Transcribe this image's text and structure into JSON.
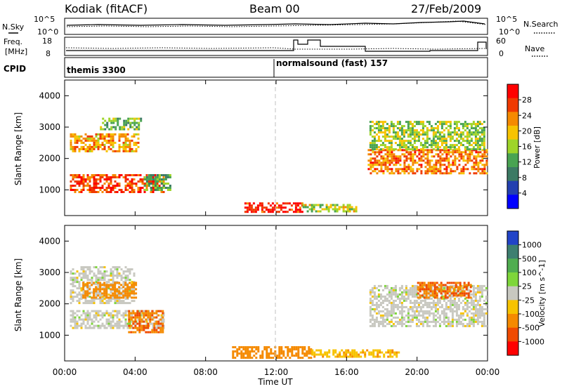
{
  "header": {
    "station": "Kodiak (fitACF)",
    "beam": "Beam 00",
    "date": "27/Feb/2009"
  },
  "top_panels": {
    "nsky_label": "N.Sky",
    "nsearch_label": "N.Search",
    "freq_label": "Freq.",
    "freq_unit": "[MHz]",
    "nave_label": "Nave",
    "cpid_label": "CPID",
    "noise_left_ticks": [
      "10^5",
      "10^0"
    ],
    "noise_right_ticks": [
      "10^5",
      "10^0"
    ],
    "freq_ticks": [
      "18",
      "8"
    ],
    "nave_ticks": [
      "60",
      "0"
    ]
  },
  "cpid_segments": [
    {
      "label": "themis 3300",
      "start_hour": 0
    },
    {
      "label": "normalsound (fast) 157",
      "start_hour": 12
    }
  ],
  "colors": {
    "power_scale": [
      "#0000ff",
      "#2340b0",
      "#3c7a64",
      "#49a352",
      "#9ed429",
      "#f7c300",
      "#f58a00",
      "#f03a00",
      "#ff0000"
    ],
    "velocity_scale": [
      "#2244c8",
      "#3d7f70",
      "#50ad50",
      "#7ed63a",
      "#c8c8c0",
      "#f7c300",
      "#f58a00",
      "#f04a00",
      "#ff0000"
    ],
    "ground_scatter": "#c0c0b8"
  },
  "chart_data": [
    {
      "type": "heatmap",
      "title": "Power",
      "ylabel": "Slant Range [km]",
      "xlabel": "Time UT",
      "x_ticks": [
        "00:00",
        "04:00",
        "08:00",
        "12:00",
        "16:00",
        "20:00",
        "00:00"
      ],
      "y_ticks": [
        "1000",
        "2000",
        "3000",
        "4000"
      ],
      "xlim_hours": [
        0,
        24
      ],
      "ylim_km": [
        180,
        4500
      ],
      "colorbar_label": "Power [dB]",
      "colorbar_ticks": [
        "28",
        "24",
        "20",
        "16",
        "12",
        "8",
        "4"
      ],
      "colorbar_range_db": [
        0,
        32
      ],
      "regions": [
        {
          "t0": 0.3,
          "t1": 5.6,
          "r0": 900,
          "r1": 1500,
          "value": 27
        },
        {
          "t0": 0.3,
          "t1": 4.2,
          "r0": 2200,
          "r1": 2800,
          "value": 22
        },
        {
          "t0": 2.0,
          "t1": 4.3,
          "r0": 2900,
          "r1": 3300,
          "value": 14
        },
        {
          "t0": 4.5,
          "t1": 6.0,
          "r0": 1000,
          "r1": 1500,
          "value": 13
        },
        {
          "t0": 10.2,
          "t1": 13.5,
          "r0": 300,
          "r1": 600,
          "value": 29
        },
        {
          "t0": 13.5,
          "t1": 16.5,
          "r0": 300,
          "r1": 550,
          "value": 17
        },
        {
          "t0": 17.2,
          "t1": 23.9,
          "r0": 1500,
          "r1": 2300,
          "value": 24
        },
        {
          "t0": 17.3,
          "t1": 23.8,
          "r0": 2300,
          "r1": 3200,
          "value": 16
        }
      ]
    },
    {
      "type": "heatmap",
      "title": "Velocity",
      "ylabel": "Slant Range [km]",
      "xlabel": "Time UT",
      "x_ticks": [
        "00:00",
        "04:00",
        "08:00",
        "12:00",
        "16:00",
        "20:00",
        "00:00"
      ],
      "y_ticks": [
        "1000",
        "2000",
        "3000",
        "4000"
      ],
      "xlim_hours": [
        0,
        24
      ],
      "ylim_km": [
        180,
        4500
      ],
      "colorbar_label": "Velocity [m s^-1]",
      "colorbar_ticks": [
        "1000",
        "500",
        "100",
        "25",
        "-25",
        "-100",
        "-500",
        "-1000"
      ],
      "regions": [
        {
          "t0": 0.3,
          "t1": 5.6,
          "r0": 1200,
          "r1": 1800,
          "value": 0
        },
        {
          "t0": 0.3,
          "t1": 4.0,
          "r0": 2000,
          "r1": 3200,
          "value": 0
        },
        {
          "t0": 3.6,
          "t1": 5.6,
          "r0": 1100,
          "r1": 1800,
          "value": -500
        },
        {
          "t0": 1.0,
          "t1": 4.0,
          "r0": 2200,
          "r1": 2700,
          "value": -300
        },
        {
          "t0": 9.5,
          "t1": 14.0,
          "r0": 300,
          "r1": 650,
          "value": -150
        },
        {
          "t0": 14.0,
          "t1": 19.0,
          "r0": 300,
          "r1": 550,
          "value": -80
        },
        {
          "t0": 17.3,
          "t1": 23.9,
          "r0": 1300,
          "r1": 2600,
          "value": 0
        },
        {
          "t0": 20.0,
          "t1": 23.0,
          "r0": 2200,
          "r1": 2700,
          "value": -500
        }
      ]
    }
  ]
}
